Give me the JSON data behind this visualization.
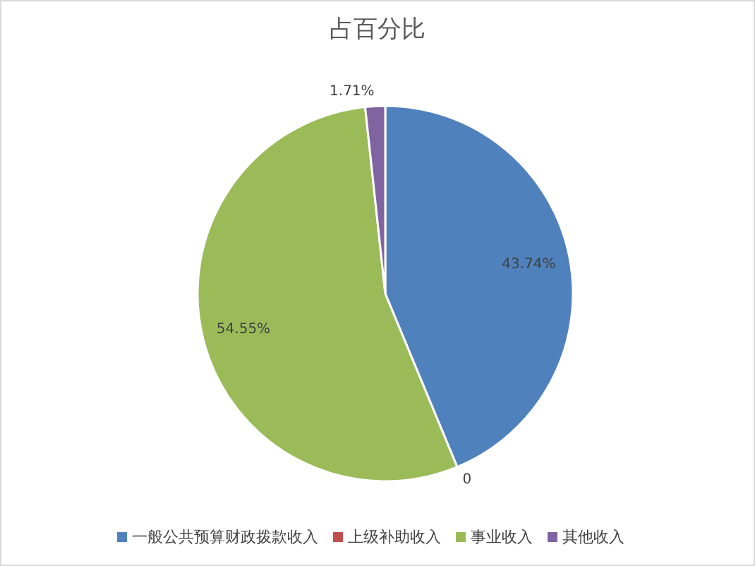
{
  "chart_data": {
    "type": "pie",
    "title": "占百分比",
    "categories": [
      "一般公共预算财政拨款收入",
      "上级补助收入",
      "事业收入",
      "其他收入"
    ],
    "values": [
      43.74,
      0,
      54.55,
      1.71
    ],
    "value_labels": [
      "43.74%",
      "0",
      "54.55%",
      "1.71%"
    ],
    "colors": [
      "#4f81bd",
      "#c0504d",
      "#9bbb59",
      "#8064a2"
    ],
    "legend": "bottom"
  }
}
